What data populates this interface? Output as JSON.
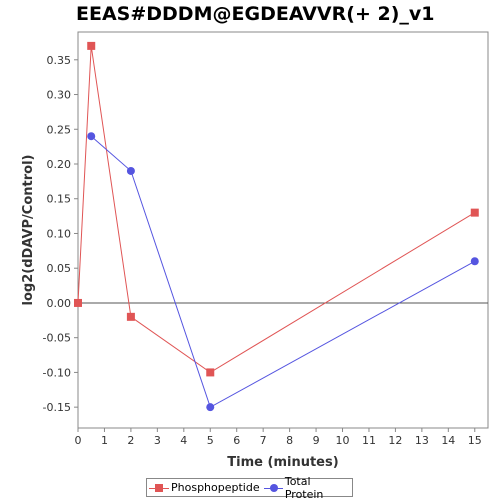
{
  "chart_data": {
    "type": "line",
    "title": "EEAS#DDDM@EGDEAVVR(+ 2)_v1",
    "xlabel": "Time (minutes)",
    "ylabel": "log2(dDAVP/Control)",
    "xlim": [
      0,
      15.5
    ],
    "ylim": [
      -0.18,
      0.39
    ],
    "xticks": [
      0,
      1,
      2,
      3,
      4,
      5,
      6,
      7,
      8,
      9,
      10,
      11,
      12,
      13,
      14,
      15
    ],
    "yticks": [
      -0.15,
      -0.1,
      -0.05,
      0.0,
      0.05,
      0.1,
      0.15,
      0.2,
      0.25,
      0.3,
      0.35
    ],
    "ytick_labels": [
      "-0.15",
      "-0.10",
      "-0.05",
      "0.00",
      "0.05",
      "0.10",
      "0.15",
      "0.20",
      "0.25",
      "0.30",
      "0.35"
    ],
    "zero_line": true,
    "grid": false,
    "legend_position": "bottom",
    "series": [
      {
        "name": "Phosphopeptide",
        "color": "#e05555",
        "marker": "square",
        "x": [
          0,
          0.5,
          2,
          5,
          15
        ],
        "y": [
          0.0,
          0.37,
          -0.02,
          -0.1,
          0.13
        ]
      },
      {
        "name": "Total Protein",
        "color": "#5555e0",
        "marker": "circle",
        "x": [
          0.5,
          2,
          5,
          15
        ],
        "y": [
          0.24,
          0.19,
          -0.15,
          0.06
        ]
      }
    ]
  }
}
